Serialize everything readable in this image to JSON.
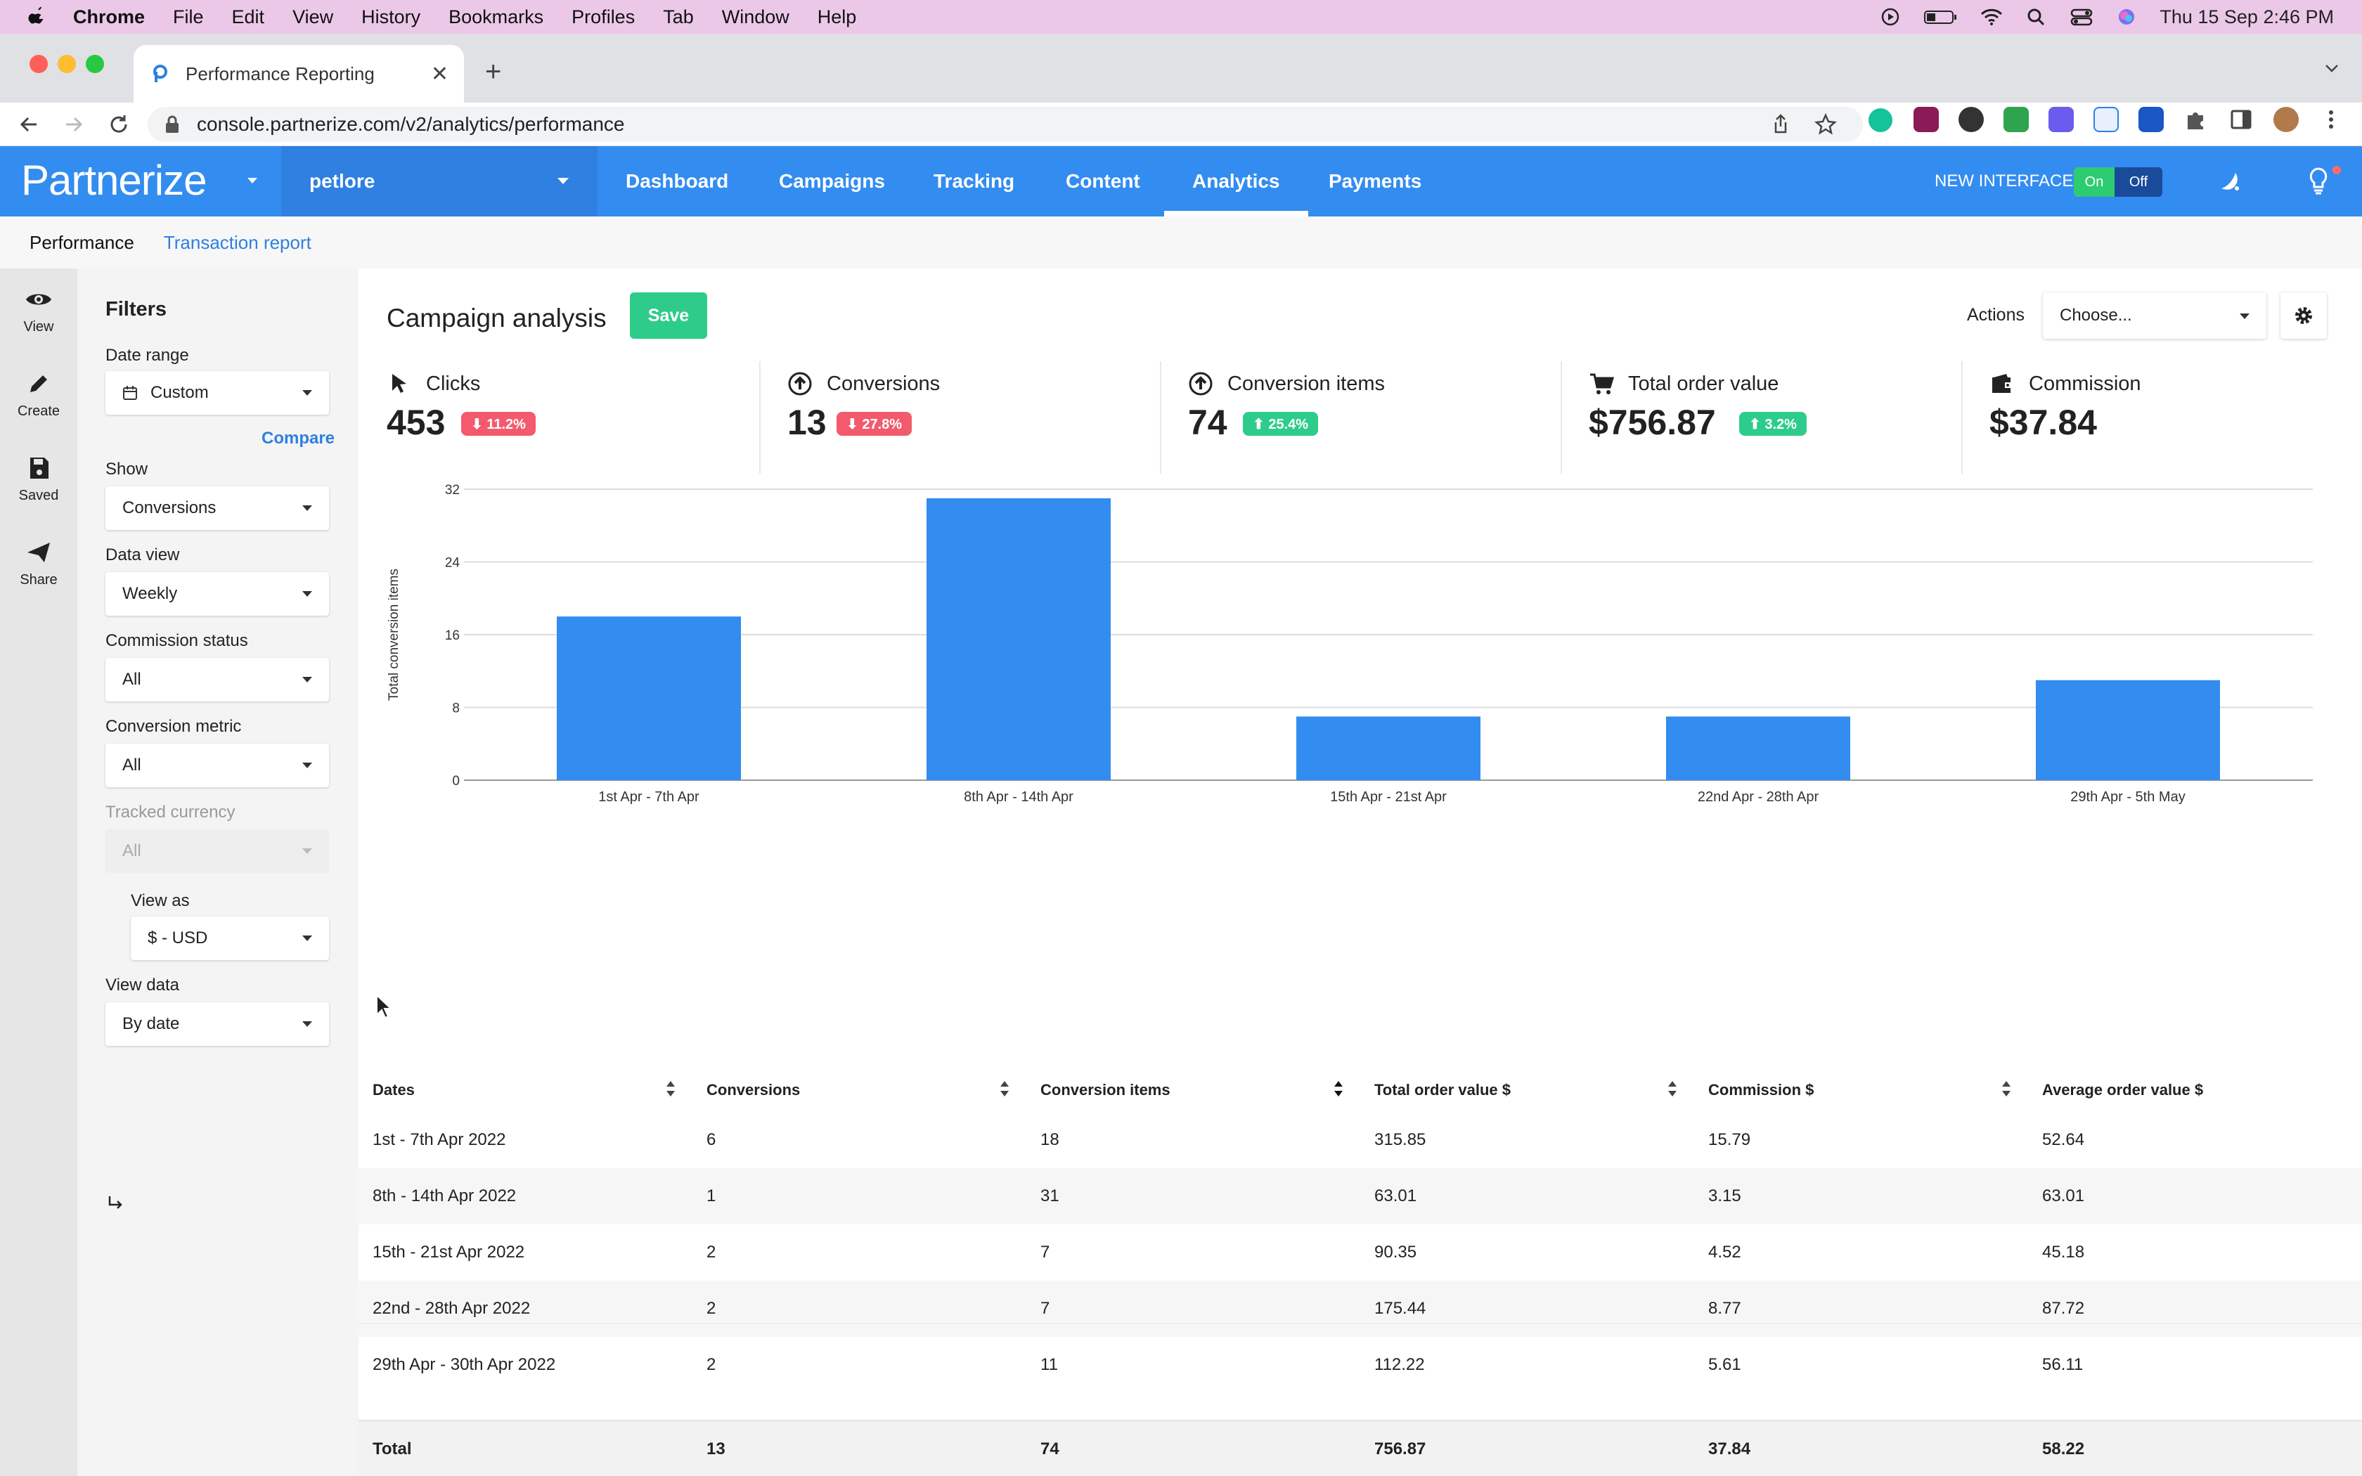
{
  "menubar": {
    "app": "Chrome",
    "items": [
      "File",
      "Edit",
      "View",
      "History",
      "Bookmarks",
      "Profiles",
      "Tab",
      "Window",
      "Help"
    ],
    "datetime": "Thu 15 Sep  2:46 PM"
  },
  "browser": {
    "tab_title": "Performance Reporting",
    "url": "console.partnerize.com/v2/analytics/performance"
  },
  "header": {
    "logo": "Partnerize",
    "account": "petlore",
    "nav": [
      "Dashboard",
      "Campaigns",
      "Tracking",
      "Content",
      "Analytics",
      "Payments"
    ],
    "active_nav": "Analytics",
    "new_interface_label": "NEW INTERFACE",
    "toggle_on": "On",
    "toggle_off": "Off"
  },
  "subnav": {
    "items": [
      "Performance",
      "Transaction report"
    ]
  },
  "rail": {
    "items": [
      {
        "label": "View",
        "icon": "eye-icon"
      },
      {
        "label": "Create",
        "icon": "pencil-icon"
      },
      {
        "label": "Saved",
        "icon": "floppy-icon"
      },
      {
        "label": "Share",
        "icon": "send-icon"
      }
    ]
  },
  "filters": {
    "title": "Filters",
    "date_range_label": "Date range",
    "date_range_value": "Custom",
    "compare": "Compare",
    "show_label": "Show",
    "show_value": "Conversions",
    "data_view_label": "Data view",
    "data_view_value": "Weekly",
    "commission_status_label": "Commission status",
    "commission_status_value": "All",
    "conversion_metric_label": "Conversion metric",
    "conversion_metric_value": "All",
    "tracked_currency_label": "Tracked currency",
    "tracked_currency_value": "All",
    "view_as_label": "View as",
    "view_as_value": "$ - USD",
    "view_data_label": "View data",
    "view_data_value": "By date"
  },
  "main": {
    "title": "Campaign analysis",
    "save": "Save",
    "actions_label": "Actions",
    "actions_placeholder": "Choose..."
  },
  "kpis": [
    {
      "label": "Clicks",
      "value": "453",
      "badge": "⬇ 11.2%",
      "trend": "down",
      "icon": "cursor-icon"
    },
    {
      "label": "Conversions",
      "value": "13",
      "badge": "⬇ 27.8%",
      "trend": "down",
      "icon": "conversion-icon"
    },
    {
      "label": "Conversion items",
      "value": "74",
      "badge": "⬆ 25.4%",
      "trend": "up",
      "icon": "conversion-items-icon"
    },
    {
      "label": "Total order value",
      "value": "$756.87",
      "badge": "⬆ 3.2%",
      "trend": "up",
      "icon": "cart-icon"
    },
    {
      "label": "Commission",
      "value": "$37.84",
      "badge": "",
      "trend": "",
      "icon": "wallet-icon"
    }
  ],
  "chart_data": {
    "type": "bar",
    "categories": [
      "1st Apr - 7th Apr",
      "8th Apr - 14th Apr",
      "15th Apr - 21st Apr",
      "22nd Apr - 28th Apr",
      "29th Apr - 5th May"
    ],
    "values": [
      18,
      31,
      7,
      7,
      11
    ],
    "xlabel": "",
    "ylabel": "Total conversion items",
    "ylim": [
      0,
      32
    ],
    "yticks": [
      0,
      8,
      16,
      24,
      32
    ],
    "grid": true,
    "color": "#338cf0"
  },
  "table": {
    "headers": [
      "Dates",
      "Conversions",
      "Conversion items",
      "Total order value $",
      "Commission $",
      "Average order value $"
    ],
    "rows": [
      [
        "1st - 7th Apr 2022",
        "6",
        "18",
        "315.85",
        "15.79",
        "52.64"
      ],
      [
        "8th - 14th Apr 2022",
        "1",
        "31",
        "63.01",
        "3.15",
        "63.01"
      ],
      [
        "15th - 21st Apr 2022",
        "2",
        "7",
        "90.35",
        "4.52",
        "45.18"
      ],
      [
        "22nd - 28th Apr 2022",
        "2",
        "7",
        "175.44",
        "8.77",
        "87.72"
      ],
      [
        "29th Apr - 30th Apr 2022",
        "2",
        "11",
        "112.22",
        "5.61",
        "56.11"
      ]
    ],
    "total": [
      "Total",
      "13",
      "74",
      "756.87",
      "37.84",
      "58.22"
    ]
  }
}
